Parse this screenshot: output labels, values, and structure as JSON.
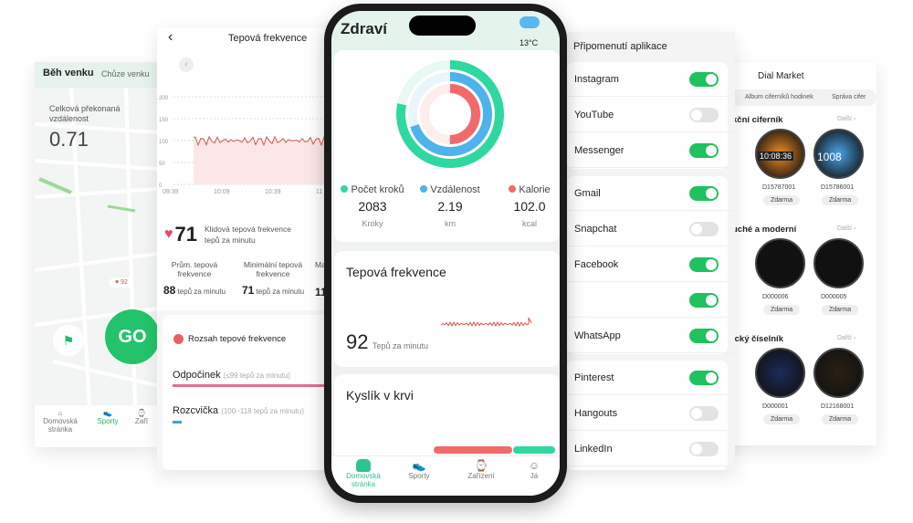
{
  "running": {
    "tabs": [
      "Běh venku",
      "Chůze venku"
    ],
    "distance_label": "Celková překonaná vzdálenost",
    "distance_value": "0.71",
    "hr_badge": "92",
    "go_label": "GO",
    "nav": [
      "Domovská stránka",
      "Sporty",
      "Zaří"
    ]
  },
  "heart": {
    "title": "Tepová frekvence",
    "y_ticks": [
      "200",
      "150",
      "100",
      "50",
      "0"
    ],
    "x_ticks": [
      "09:39",
      "10:09",
      "10:39",
      "11"
    ],
    "resting_value": "71",
    "resting_label": "Klidová tepová frekvence",
    "resting_unit": "tepů za minutu",
    "stats": [
      {
        "label": "Prům. tepová frekvence",
        "value": "88",
        "unit": "tepů za minutu"
      },
      {
        "label": "Minimální tepová frekvence",
        "value": "71",
        "unit": "tepů za minutu"
      },
      {
        "label": "Ma",
        "value": "11",
        "unit": ""
      }
    ],
    "range_title": "Rozsah tepové frekvence",
    "ranges": [
      {
        "name": "Odpočinek",
        "detail": "(≤99 tepů za minutu)",
        "color": "#e0708f"
      },
      {
        "name": "Rozcvička",
        "detail": "(100~118 tepů za minutu)",
        "color": "#3ea0e8"
      }
    ]
  },
  "health": {
    "title": "Zdraví",
    "weather": "13°C",
    "weather_icon": "rain-cloud-icon",
    "metrics": [
      {
        "label": "Počet kroků",
        "value": "2083",
        "unit": "Kroky",
        "color": "#2fd8a0",
        "icon": "shoe-icon"
      },
      {
        "label": "Vzdálenost",
        "value": "2.19",
        "unit": "km",
        "color": "#4db3ea",
        "icon": "location-pin-icon"
      },
      {
        "label": "Kalorie",
        "value": "102.0",
        "unit": "kcal",
        "color": "#f06a6a",
        "icon": "flame-icon"
      }
    ],
    "hr_title": "Tepová frekvence",
    "hr_value": "92",
    "hr_unit": "Tepů za minutu",
    "spo2_title": "Kyslík v krvi",
    "nav": [
      "Domovská stránka",
      "Sporty",
      "Zařízení",
      "Já"
    ]
  },
  "notifications": {
    "title": "Připomenutí aplikace",
    "apps": [
      {
        "name": "Instagram",
        "on": true
      },
      {
        "name": "YouTube",
        "on": false
      },
      {
        "name": "Messenger",
        "on": true
      },
      {
        "name": "Gmail",
        "on": true
      },
      {
        "name": "Snapchat",
        "on": false
      },
      {
        "name": "Facebook",
        "on": true
      },
      {
        "name": "",
        "on": true
      },
      {
        "name": "WhatsApp",
        "on": true
      },
      {
        "name": "Pinterest",
        "on": true
      },
      {
        "name": "Hangouts",
        "on": false
      },
      {
        "name": "LinkedIn",
        "on": false
      }
    ]
  },
  "dials": {
    "title": "Dial Market",
    "tabs": [
      "Album ciferníků hodinek",
      "Správa cifer"
    ],
    "more": "Další",
    "sections": [
      {
        "title": "kční ciferník",
        "items": [
          {
            "id": "D15787001",
            "price": "Zdarma"
          },
          {
            "id": "D15786001",
            "price": "Zdarma"
          }
        ]
      },
      {
        "title": "uché a moderní",
        "items": [
          {
            "id": "D000006",
            "price": "Zdarma"
          },
          {
            "id": "D000005",
            "price": "Zdarma"
          }
        ]
      },
      {
        "title": "ický číselník",
        "items": [
          {
            "id": "D000001",
            "price": "Zdarma"
          },
          {
            "id": "D12168001",
            "price": "Zdarma"
          }
        ]
      }
    ],
    "clock_text": "10:08:36",
    "clock_text2": "1008"
  }
}
